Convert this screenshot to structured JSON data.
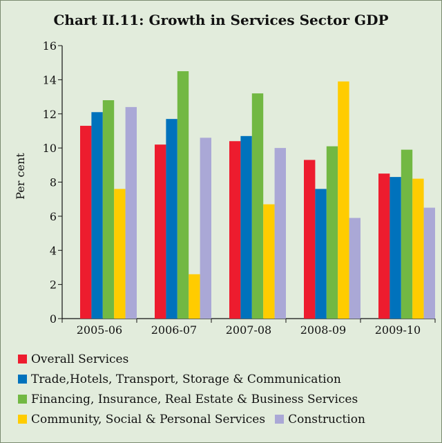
{
  "chart_data": {
    "type": "bar",
    "title": "Chart II.11: Growth in Services Sector GDP",
    "xlabel": "",
    "ylabel": "Per cent",
    "ylim": [
      0,
      16
    ],
    "yticks": [
      0,
      2,
      4,
      6,
      8,
      10,
      12,
      14,
      16
    ],
    "categories": [
      "2005-06",
      "2006-07",
      "2007-08",
      "2008-09",
      "2009-10"
    ],
    "series": [
      {
        "name": "Overall Services",
        "color": "#ed1c2e",
        "values": [
          11.3,
          10.2,
          10.4,
          9.3,
          8.5
        ]
      },
      {
        "name": "Trade,Hotels, Transport, Storage & Communication",
        "color": "#0072bc",
        "values": [
          12.1,
          11.7,
          10.7,
          7.6,
          8.3
        ]
      },
      {
        "name": "Financing, Insurance, Real Estate & Business Services",
        "color": "#72b843",
        "values": [
          12.8,
          14.5,
          13.2,
          10.1,
          9.9
        ]
      },
      {
        "name": "Community, Social & Personal Services",
        "color": "#ffcc00",
        "values": [
          7.6,
          2.6,
          6.7,
          13.9,
          8.2
        ]
      },
      {
        "name": "Construction",
        "color": "#aaa8d6",
        "values": [
          12.4,
          10.6,
          10.0,
          5.9,
          6.5
        ]
      }
    ],
    "grid": false,
    "legend_position": "bottom"
  }
}
